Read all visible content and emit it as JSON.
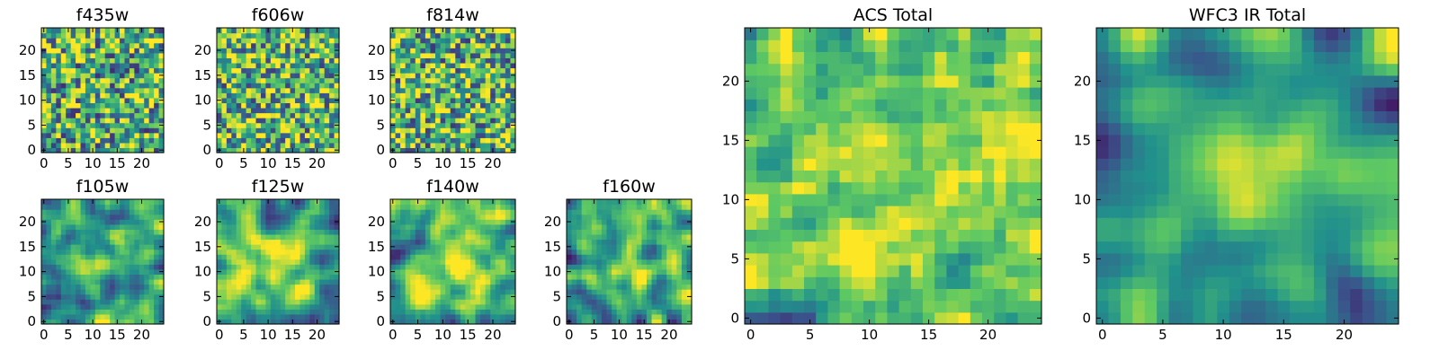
{
  "figure": {
    "colormap": "viridis",
    "colormap_stops": [
      "#440154",
      "#3b528b",
      "#21918c",
      "#5ec962",
      "#fde725"
    ]
  },
  "chart_data": [
    {
      "type": "heatmap",
      "title": "f435w",
      "grid_size": [
        25,
        25
      ],
      "x_ticks": [
        "0",
        "5",
        "10",
        "15",
        "20"
      ],
      "y_ticks": [
        "0",
        "5",
        "10",
        "15",
        "20"
      ],
      "smoothness": 0.0,
      "mean_level": 0.62,
      "seed": 11
    },
    {
      "type": "heatmap",
      "title": "f606w",
      "grid_size": [
        25,
        25
      ],
      "x_ticks": [
        "0",
        "5",
        "10",
        "15",
        "20"
      ],
      "y_ticks": [
        "0",
        "5",
        "10",
        "15",
        "20"
      ],
      "smoothness": 0.0,
      "mean_level": 0.66,
      "seed": 23
    },
    {
      "type": "heatmap",
      "title": "f814w",
      "grid_size": [
        25,
        25
      ],
      "x_ticks": [
        "0",
        "5",
        "10",
        "15",
        "20"
      ],
      "y_ticks": [
        "0",
        "5",
        "10",
        "15",
        "20"
      ],
      "smoothness": 0.05,
      "mean_level": 0.64,
      "seed": 37
    },
    {
      "type": "heatmap",
      "title": "f105w",
      "grid_size": [
        25,
        25
      ],
      "x_ticks": [
        "0",
        "5",
        "10",
        "15",
        "20"
      ],
      "y_ticks": [
        "0",
        "5",
        "10",
        "15",
        "20"
      ],
      "smoothness": 0.55,
      "mean_level": 0.62,
      "seed": 41,
      "bright_center": [
        12,
        12
      ]
    },
    {
      "type": "heatmap",
      "title": "f125w",
      "grid_size": [
        25,
        25
      ],
      "x_ticks": [
        "0",
        "5",
        "10",
        "15",
        "20"
      ],
      "y_ticks": [
        "0",
        "5",
        "10",
        "15",
        "20"
      ],
      "smoothness": 0.55,
      "mean_level": 0.66,
      "seed": 53,
      "bright_center": [
        13,
        12
      ]
    },
    {
      "type": "heatmap",
      "title": "f140w",
      "grid_size": [
        25,
        25
      ],
      "x_ticks": [
        "0",
        "5",
        "10",
        "15",
        "20"
      ],
      "y_ticks": [
        "0",
        "5",
        "10",
        "15",
        "20"
      ],
      "smoothness": 0.55,
      "mean_level": 0.66,
      "seed": 67,
      "bright_center": [
        13,
        13
      ]
    },
    {
      "type": "heatmap",
      "title": "f160w",
      "grid_size": [
        25,
        25
      ],
      "x_ticks": [
        "0",
        "5",
        "10",
        "15",
        "20"
      ],
      "y_ticks": [
        "0",
        "5",
        "10",
        "15",
        "20"
      ],
      "smoothness": 0.6,
      "mean_level": 0.6,
      "seed": 79,
      "bright_center": [
        12,
        11
      ]
    },
    {
      "type": "heatmap",
      "title": "ACS Total",
      "grid_size": [
        25,
        25
      ],
      "x_ticks": [
        "0",
        "5",
        "10",
        "15",
        "20"
      ],
      "y_ticks": [
        "0",
        "5",
        "10",
        "15",
        "20"
      ],
      "smoothness": 0.15,
      "mean_level": 0.68,
      "seed": 97
    },
    {
      "type": "heatmap",
      "title": "WFC3 IR Total",
      "grid_size": [
        25,
        25
      ],
      "x_ticks": [
        "0",
        "5",
        "10",
        "15",
        "20"
      ],
      "y_ticks": [
        "0",
        "5",
        "10",
        "15",
        "20"
      ],
      "smoothness": 0.75,
      "mean_level": 0.62,
      "seed": 113,
      "bright_center": [
        12,
        12
      ]
    }
  ]
}
